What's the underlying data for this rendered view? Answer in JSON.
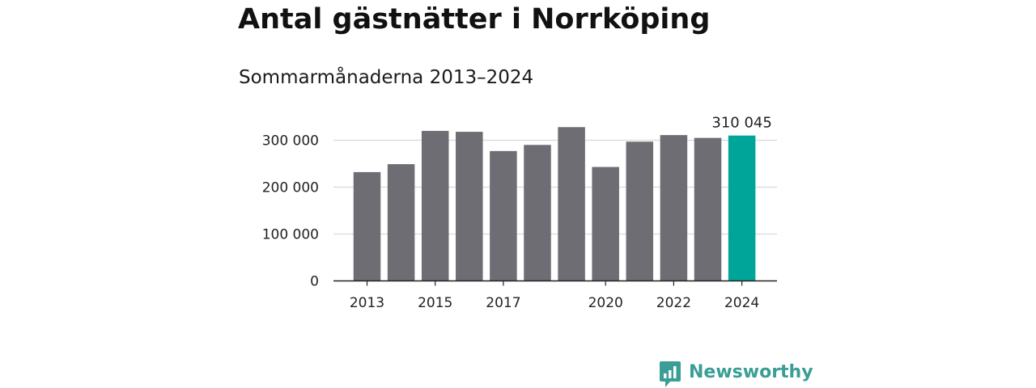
{
  "title": "Antal gästnätter i Norrköping",
  "subtitle": "Sommarmånaderna 2013–2024",
  "logo": {
    "text": "Newsworthy",
    "icon": "newsworthy-logo-icon",
    "color": "#3a9e96"
  },
  "colors": {
    "bar": "#6d6d73",
    "highlight": "#00a599",
    "grid": "#d9d9d9",
    "axis": "#222222"
  },
  "chart_data": {
    "type": "bar",
    "title": "Antal gästnätter i Norrköping",
    "subtitle": "Sommarmånaderna 2013–2024",
    "xlabel": "",
    "ylabel": "",
    "categories": [
      "2013",
      "2014",
      "2015",
      "2016",
      "2017",
      "2018",
      "2019",
      "2020",
      "2021",
      "2022",
      "2023",
      "2024"
    ],
    "values": [
      232000,
      249000,
      320000,
      318000,
      277000,
      290000,
      328000,
      243000,
      297000,
      311000,
      305000,
      310045
    ],
    "highlight_index": 11,
    "ylim": [
      0,
      330000
    ],
    "yticks": [
      0,
      100000,
      200000,
      300000
    ],
    "ytick_labels": [
      "0",
      "100 000",
      "200 000",
      "300 000"
    ],
    "xtick_labels": [
      "2013",
      "2015",
      "2017",
      "2020",
      "2022",
      "2024"
    ],
    "annotations": [
      {
        "category": "2024",
        "text": "310 045"
      }
    ],
    "grid": true,
    "legend": "none"
  }
}
